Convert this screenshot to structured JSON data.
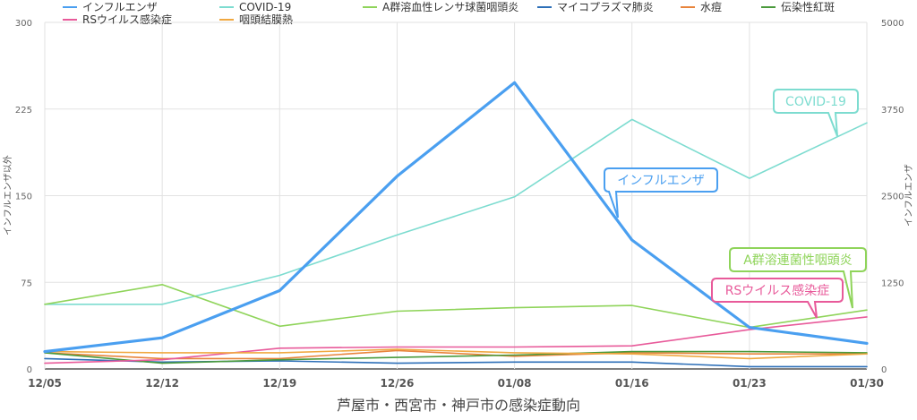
{
  "chart_data": {
    "type": "line",
    "title": "芦屋市・西宮市・神戸市の感染症動向",
    "x": [
      "12/05",
      "12/12",
      "12/19",
      "12/26",
      "01/08",
      "01/16",
      "01/23",
      "01/30"
    ],
    "ylabel_left": "インフルエンザ以外",
    "ylabel_right": "インフルエンザ",
    "ylim_left": [
      0,
      300
    ],
    "ylim_right": [
      0,
      5000
    ],
    "yticks_left": [
      "0",
      "75",
      "150",
      "225",
      "300"
    ],
    "yticks_right": [
      "0",
      "1250",
      "2500",
      "3750",
      "5000"
    ],
    "grid": true,
    "legend_position": "top",
    "series": [
      {
        "name": "インフルエンザ",
        "axis": "right",
        "color": "#4a9ff0",
        "bold": true,
        "values": [
          250,
          450,
          1130,
          2780,
          4130,
          1860,
          600,
          370
        ]
      },
      {
        "name": "COVID-19",
        "axis": "left",
        "color": "#7ddcd0",
        "values": [
          56,
          56,
          81,
          116,
          149,
          216,
          165,
          213
        ]
      },
      {
        "name": "A群溶血性レンサ球菌咽頭炎",
        "axis": "left",
        "color": "#8fd45a",
        "values": [
          56,
          73,
          37,
          50,
          53,
          55,
          36,
          51
        ]
      },
      {
        "name": "マイコプラズマ肺炎",
        "axis": "left",
        "color": "#2d6fb8",
        "values": [
          9,
          6,
          7,
          5,
          6,
          6,
          2,
          2
        ]
      },
      {
        "name": "水痘",
        "axis": "left",
        "color": "#e8843c",
        "values": [
          14,
          9,
          9,
          16,
          11,
          14,
          13,
          13
        ]
      },
      {
        "name": "伝染性紅斑",
        "axis": "left",
        "color": "#4a9a3c",
        "values": [
          14,
          5,
          8,
          10,
          12,
          15,
          15,
          14
        ]
      },
      {
        "name": "RSウイルス感染症",
        "axis": "left",
        "color": "#e85a9a",
        "values": [
          5,
          8,
          18,
          19,
          19,
          20,
          34,
          45
        ]
      },
      {
        "name": "咽頭結膜熱",
        "axis": "left",
        "color": "#f0a840",
        "values": [
          15,
          14,
          14,
          17,
          14,
          13,
          9,
          13
        ]
      }
    ],
    "annotations": [
      {
        "text": "COVID-19",
        "series": "COVID-19",
        "color": "#7ddcd0"
      },
      {
        "text": "インフルエンザ",
        "series": "インフルエンザ",
        "color": "#4a9ff0"
      },
      {
        "text": "A群溶連菌性咽頭炎",
        "series": "A群溶血性レンサ球菌咽頭炎",
        "color": "#8fd45a"
      },
      {
        "text": "RSウイルス感染症",
        "series": "RSウイルス感染症",
        "color": "#e85a9a"
      }
    ]
  }
}
